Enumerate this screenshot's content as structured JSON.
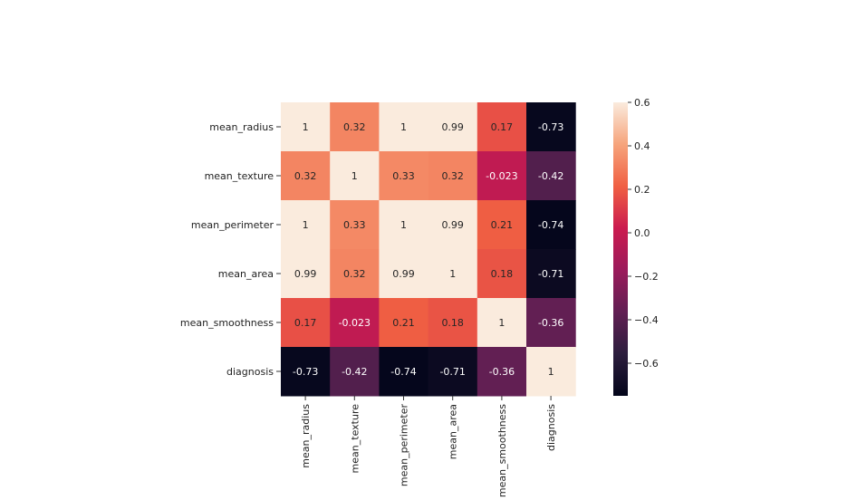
{
  "chart_data": {
    "type": "heatmap",
    "title": "",
    "xlabel": "",
    "ylabel": "",
    "rows": [
      "mean_radius",
      "mean_texture",
      "mean_perimeter",
      "mean_area",
      "mean_smoothness",
      "diagnosis"
    ],
    "columns": [
      "mean_radius",
      "mean_texture",
      "mean_perimeter",
      "mean_area",
      "mean_smoothness",
      "diagnosis"
    ],
    "values": [
      [
        1,
        0.32,
        1,
        0.99,
        0.17,
        -0.73
      ],
      [
        0.32,
        1,
        0.33,
        0.32,
        -0.023,
        -0.42
      ],
      [
        1,
        0.33,
        1,
        0.99,
        0.21,
        -0.74
      ],
      [
        0.99,
        0.32,
        0.99,
        1,
        0.18,
        -0.71
      ],
      [
        0.17,
        -0.023,
        0.21,
        0.18,
        1,
        -0.36
      ],
      [
        -0.73,
        -0.42,
        -0.74,
        -0.71,
        -0.36,
        1
      ]
    ],
    "annotations": [
      [
        "1",
        "0.32",
        "1",
        "0.99",
        "0.17",
        "-0.73"
      ],
      [
        "0.32",
        "1",
        "0.33",
        "0.32",
        "-0.023",
        "-0.42"
      ],
      [
        "1",
        "0.33",
        "1",
        "0.99",
        "0.21",
        "-0.74"
      ],
      [
        "0.99",
        "0.32",
        "0.99",
        "1",
        "0.18",
        "-0.71"
      ],
      [
        "0.17",
        "-0.023",
        "0.21",
        "0.18",
        "1",
        "-0.36"
      ],
      [
        "-0.73",
        "-0.42",
        "-0.74",
        "-0.71",
        "-0.36",
        "1"
      ]
    ],
    "colorbar": {
      "vmin": -0.75,
      "vmax": 0.6,
      "ticks": [
        0.6,
        0.4,
        0.2,
        0.0,
        -0.2,
        -0.4,
        -0.6
      ],
      "tick_labels": [
        "0.6",
        "0.4",
        "0.2",
        "0.0",
        "−0.2",
        "−0.4",
        "−0.6"
      ],
      "colormap": "rocket",
      "colormap_stops": [
        "#03051a",
        "#2d1e3e",
        "#611f53",
        "#9b1b5b",
        "#cb1b4f",
        "#f06043",
        "#f6a47c",
        "#faebdd"
      ]
    },
    "grid": false,
    "legend": "colorbar right"
  }
}
